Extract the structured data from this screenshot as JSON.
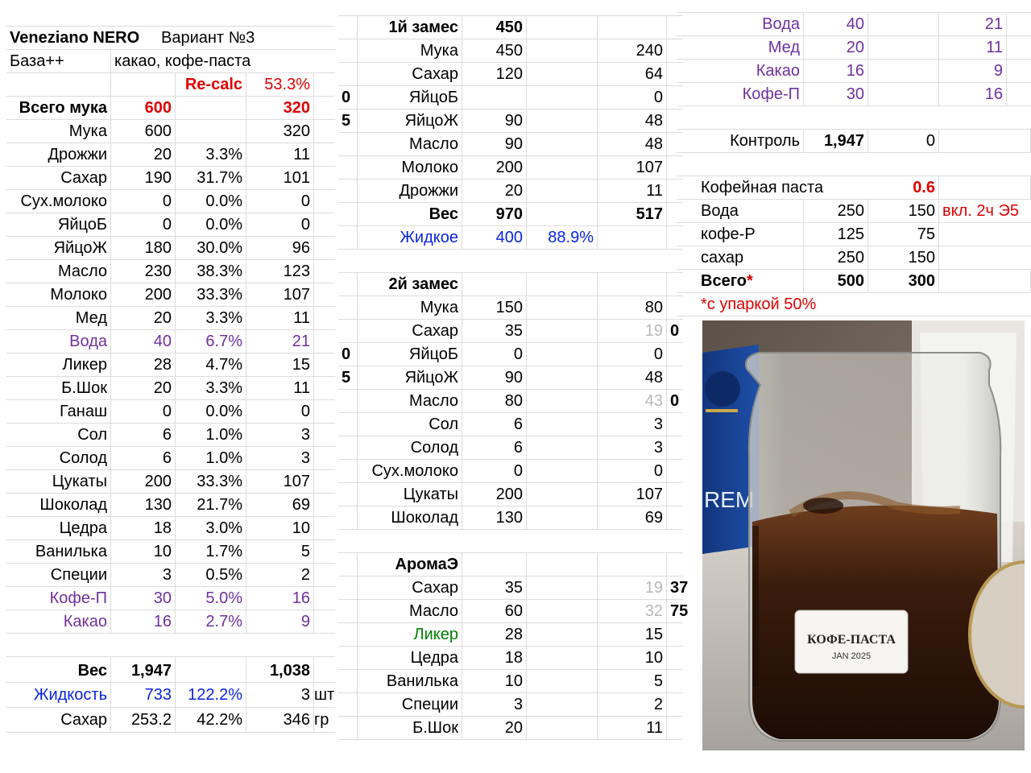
{
  "left": {
    "title": "Veneziano NERO",
    "variant": "Вариант №3",
    "base_label": "База++",
    "base_value": "какао, кофе-паста",
    "recalc_label": "Re-calc",
    "recalc_pct": "53.3%",
    "total_flour": {
      "label": "Всего мука",
      "v1": "600",
      "v2": "320"
    },
    "rows": [
      {
        "name": "Мука",
        "qty": "600",
        "pct": "",
        "re": "320",
        "color": ""
      },
      {
        "name": "Дрожжи",
        "qty": "20",
        "pct": "3.3%",
        "re": "11",
        "color": ""
      },
      {
        "name": "Сахар",
        "qty": "190",
        "pct": "31.7%",
        "re": "101",
        "color": ""
      },
      {
        "name": "Сух.молоко",
        "qty": "0",
        "pct": "0.0%",
        "re": "0",
        "color": ""
      },
      {
        "name": "ЯйцоБ",
        "qty": "0",
        "pct": "0.0%",
        "re": "0",
        "color": ""
      },
      {
        "name": "ЯйцоЖ",
        "qty": "180",
        "pct": "30.0%",
        "re": "96",
        "color": ""
      },
      {
        "name": "Масло",
        "qty": "230",
        "pct": "38.3%",
        "re": "123",
        "color": ""
      },
      {
        "name": "Молоко",
        "qty": "200",
        "pct": "33.3%",
        "re": "107",
        "color": ""
      },
      {
        "name": "Мед",
        "qty": "20",
        "pct": "3.3%",
        "re": "11",
        "color": ""
      },
      {
        "name": "Вода",
        "qty": "40",
        "pct": "6.7%",
        "re": "21",
        "color": "purple"
      },
      {
        "name": "Ликер",
        "qty": "28",
        "pct": "4.7%",
        "re": "15",
        "color": ""
      },
      {
        "name": "Б.Шок",
        "qty": "20",
        "pct": "3.3%",
        "re": "11",
        "color": ""
      },
      {
        "name": "Ганаш",
        "qty": "0",
        "pct": "0.0%",
        "re": "0",
        "color": ""
      },
      {
        "name": "Сол",
        "qty": "6",
        "pct": "1.0%",
        "re": "3",
        "color": ""
      },
      {
        "name": "Солод",
        "qty": "6",
        "pct": "1.0%",
        "re": "3",
        "color": ""
      },
      {
        "name": "Цукаты",
        "qty": "200",
        "pct": "33.3%",
        "re": "107",
        "color": ""
      },
      {
        "name": "Шоколад",
        "qty": "130",
        "pct": "21.7%",
        "re": "69",
        "color": ""
      },
      {
        "name": "Цедра",
        "qty": "18",
        "pct": "3.0%",
        "re": "10",
        "color": ""
      },
      {
        "name": "Ванилька",
        "qty": "10",
        "pct": "1.7%",
        "re": "5",
        "color": ""
      },
      {
        "name": "Специи",
        "qty": "3",
        "pct": "0.5%",
        "re": "2",
        "color": ""
      },
      {
        "name": "Кофе-П",
        "qty": "30",
        "pct": "5.0%",
        "re": "16",
        "color": "purple"
      },
      {
        "name": "Какао",
        "qty": "16",
        "pct": "2.7%",
        "re": "9",
        "color": "purple"
      }
    ],
    "weight": {
      "label": "Вес",
      "v1": "1,947",
      "v2": "1,038"
    },
    "liquid": {
      "label": "Жидкость",
      "v1": "733",
      "pct": "122.2%",
      "v2": "3",
      "unit": "шт"
    },
    "sugar": {
      "label": "Сахар",
      "v1": "253.2",
      "pct": "42.2%",
      "v2": "346",
      "unit": "гр"
    }
  },
  "mid": {
    "mix1": {
      "label": "1й замес",
      "value": "450"
    },
    "mix1_rows": [
      {
        "mark": "",
        "name": "Мука",
        "qty": "450",
        "re": "240"
      },
      {
        "mark": "",
        "name": "Сахар",
        "qty": "120",
        "re": "64"
      },
      {
        "mark": "0",
        "name": "ЯйцоБ",
        "qty": "",
        "re": "0"
      },
      {
        "mark": "5",
        "name": "ЯйцоЖ",
        "qty": "90",
        "re": "48"
      },
      {
        "mark": "",
        "name": "Масло",
        "qty": "90",
        "re": "48"
      },
      {
        "mark": "",
        "name": "Молоко",
        "qty": "200",
        "re": "107"
      },
      {
        "mark": "",
        "name": "Дрожжи",
        "qty": "20",
        "re": "11"
      }
    ],
    "mix1_weight": {
      "label": "Вес",
      "qty": "970",
      "re": "517"
    },
    "mix1_liquid": {
      "label": "Жидкое",
      "qty": "400",
      "pct": "88.9%"
    },
    "mix2": {
      "label": "2й замес"
    },
    "mix2_rows": [
      {
        "mark": "",
        "name": "Мука",
        "qty": "150",
        "re": "80",
        "re_gray": false,
        "extra": ""
      },
      {
        "mark": "",
        "name": "Сахар",
        "qty": "35",
        "re": "19",
        "re_gray": true,
        "extra": "0"
      },
      {
        "mark": "0",
        "name": "ЯйцоБ",
        "qty": "0",
        "re": "0",
        "re_gray": false,
        "extra": ""
      },
      {
        "mark": "5",
        "name": "ЯйцоЖ",
        "qty": "90",
        "re": "48",
        "re_gray": false,
        "extra": ""
      },
      {
        "mark": "",
        "name": "Масло",
        "qty": "80",
        "re": "43",
        "re_gray": true,
        "extra": "0"
      },
      {
        "mark": "",
        "name": "Сол",
        "qty": "6",
        "re": "3",
        "re_gray": false,
        "extra": ""
      },
      {
        "mark": "",
        "name": "Солод",
        "qty": "6",
        "re": "3",
        "re_gray": false,
        "extra": ""
      },
      {
        "mark": "",
        "name": "Сух.молоко",
        "qty": "0",
        "re": "0",
        "re_gray": false,
        "extra": ""
      },
      {
        "mark": "",
        "name": "Цукаты",
        "qty": "200",
        "re": "107",
        "re_gray": false,
        "extra": ""
      },
      {
        "mark": "",
        "name": "Шоколад",
        "qty": "130",
        "re": "69",
        "re_gray": false,
        "extra": ""
      }
    ],
    "aroma": {
      "label": "АромаЭ"
    },
    "aroma_rows": [
      {
        "name": "Сахар",
        "qty": "35",
        "re": "19",
        "re_gray": true,
        "extra": "37",
        "color": ""
      },
      {
        "name": "Масло",
        "qty": "60",
        "re": "32",
        "re_gray": true,
        "extra": "75",
        "color": ""
      },
      {
        "name": "Ликер",
        "qty": "28",
        "re": "15",
        "re_gray": false,
        "extra": "",
        "color": "green"
      },
      {
        "name": "Цедра",
        "qty": "18",
        "re": "10",
        "re_gray": false,
        "extra": "",
        "color": ""
      },
      {
        "name": "Ванилька",
        "qty": "10",
        "re": "5",
        "re_gray": false,
        "extra": "",
        "color": ""
      },
      {
        "name": "Специи",
        "qty": "3",
        "re": "2",
        "re_gray": false,
        "extra": "",
        "color": ""
      },
      {
        "name": "Б.Шок",
        "qty": "20",
        "re": "11",
        "re_gray": false,
        "extra": "",
        "color": ""
      }
    ]
  },
  "right": {
    "top_rows": [
      {
        "name": "Вода",
        "qty": "40",
        "re": "21"
      },
      {
        "name": "Мед",
        "qty": "20",
        "re": "11"
      },
      {
        "name": "Какао",
        "qty": "16",
        "re": "9"
      },
      {
        "name": "Кофе-П",
        "qty": "30",
        "re": "16"
      }
    ],
    "control": {
      "label": "Контроль",
      "v1": "1,947",
      "v2": "0"
    },
    "paste": {
      "label": "Кофейная паста",
      "ratio": "0.6"
    },
    "paste_rows": [
      {
        "name": "Вода",
        "v1": "250",
        "v2": "150",
        "note": "вкл. 2ч Э5"
      },
      {
        "name": "кофе-Р",
        "v1": "125",
        "v2": "75",
        "note": ""
      },
      {
        "name": "сахар",
        "v1": "250",
        "v2": "150",
        "note": ""
      }
    ],
    "total": {
      "label": "Всего*",
      "v1": "500",
      "v2": "300"
    },
    "footnote": "*с упаркой 50%",
    "photo": {
      "jar_label_line1": "КОФЕ-ПАСТА",
      "jar_label_line2": "JAN 2025",
      "pack_text": "REM"
    }
  },
  "colors": {
    "grid": "#dcdcdc",
    "red": "#e00000",
    "blue": "#0a24e6",
    "purple": "#7030a0",
    "green": "#008000",
    "gray": "#b8b8b8"
  }
}
